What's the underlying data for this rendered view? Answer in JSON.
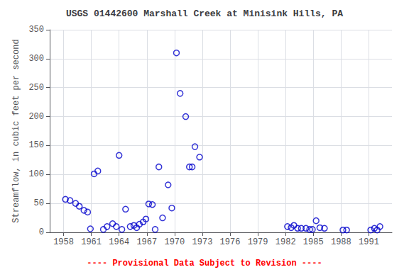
{
  "chart_data": {
    "type": "scatter",
    "title": "USGS 01442600 Marshall Creek at Minisink Hills, PA",
    "ylabel": "Streamflow, in cubic feet per second",
    "x": [
      1958.2,
      1958.7,
      1959.3,
      1959.7,
      1960.2,
      1960.6,
      1960.9,
      1961.3,
      1961.7,
      1962.3,
      1962.7,
      1963.3,
      1963.7,
      1964.0,
      1964.3,
      1964.7,
      1965.2,
      1965.6,
      1965.9,
      1966.2,
      1966.6,
      1966.9,
      1967.2,
      1967.6,
      1967.9,
      1968.3,
      1968.7,
      1969.3,
      1969.7,
      1970.2,
      1970.6,
      1971.2,
      1971.6,
      1971.9,
      1972.2,
      1972.7,
      1982.2,
      1982.6,
      1982.9,
      1983.3,
      1983.7,
      1984.2,
      1984.6,
      1984.9,
      1985.3,
      1985.7,
      1986.2,
      1988.2,
      1988.6,
      1991.2,
      1991.6,
      1991.9,
      1992.2
    ],
    "values": [
      57,
      55,
      50,
      45,
      38,
      35,
      6,
      101,
      106,
      5,
      10,
      15,
      10,
      133,
      5,
      40,
      10,
      12,
      8,
      14,
      18,
      23,
      49,
      48,
      5,
      113,
      25,
      82,
      42,
      310,
      240,
      200,
      113,
      113,
      148,
      130,
      10,
      8,
      12,
      7,
      7,
      7,
      5,
      5,
      20,
      8,
      7,
      4,
      4,
      4,
      7,
      4,
      10
    ],
    "color": "#0000CC",
    "marker": "circle",
    "xlim": [
      1956.5,
      1993.5
    ],
    "xticks": [
      1958,
      1961,
      1964,
      1967,
      1970,
      1973,
      1976,
      1979,
      1982,
      1985,
      1988,
      1991
    ],
    "ylim": [
      0,
      350
    ],
    "yticks": [
      0,
      50,
      100,
      150,
      200,
      250,
      300,
      350
    ],
    "grid": true,
    "annotations": [
      {
        "text": "---- Provisional Data Subject to Revision ----",
        "color": "#ff0000"
      }
    ]
  }
}
